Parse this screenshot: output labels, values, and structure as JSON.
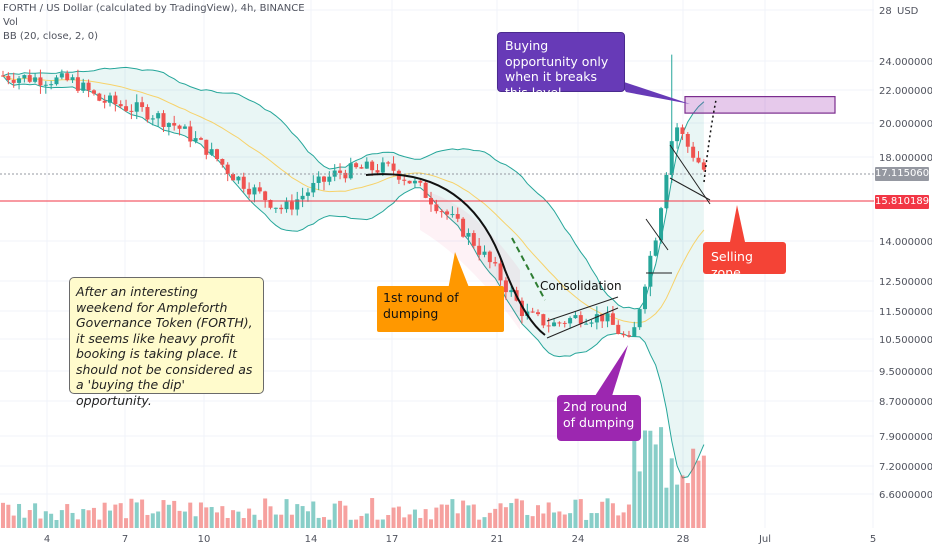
{
  "header": {
    "symbol_line": "FORTH / US Dollar (calculated by TradingView), 4h, BINANCE",
    "vol_label": "Vol",
    "bb_label": "BB (20, close, 2, 0)"
  },
  "annotations": {
    "info_note": "After an interesting weekend for Ampleforth Governance Token (FORTH), it seems like heavy profit booking is taking place. It should not be considered as a 'buying the dip' opportunity.",
    "first_dump": "1st round of dumping",
    "second_dump": "2nd round of dumping",
    "buy_opportunity": "Buying opportunity only when it breaks this level",
    "selling_zone": "Selling zone",
    "consolidation": "Consolidation"
  },
  "price_tags": [
    {
      "value": "17.1150600",
      "color": "#9598a1"
    },
    {
      "value": "15.8101898",
      "color": "#f23645"
    }
  ],
  "colors": {
    "up": "#26a69a",
    "down": "#ef5350",
    "bb_band": "#26a69a",
    "bb_basis": "#f7d26a",
    "buy_zone": "#7b2d8e",
    "sell_line": "#f23645"
  },
  "chart_data": {
    "type": "candlestick",
    "title": "FORTH / US Dollar (calculated by TradingView), 4h, BINANCE",
    "currency": "USD",
    "x_ticks": [
      "4",
      "7",
      "10",
      "14",
      "17",
      "21",
      "24",
      "28",
      "Jul",
      "5"
    ],
    "y_ticks": [
      28,
      24,
      22,
      20,
      18,
      17.11506,
      15.8101898,
      14,
      12.5,
      11.5,
      10.5,
      9.5,
      8.7,
      7.9,
      7.2,
      6.6
    ],
    "price_path": [
      [
        "4",
        23.0
      ],
      [
        "5",
        22.6
      ],
      [
        "6",
        21.4
      ],
      [
        "7",
        21.0
      ],
      [
        "8",
        20.6
      ],
      [
        "9",
        19.8
      ],
      [
        "10",
        18.6
      ],
      [
        "11",
        17.2
      ],
      [
        "12",
        16.2
      ],
      [
        "13",
        15.4
      ],
      [
        "14",
        16.4
      ],
      [
        "15",
        17.2
      ],
      [
        "16",
        17.4
      ],
      [
        "17",
        17.4
      ],
      [
        "18",
        16.5
      ],
      [
        "19",
        15.3
      ],
      [
        "20",
        14.1
      ],
      [
        "21",
        12.8
      ],
      [
        "22",
        11.4
      ],
      [
        "23",
        11.0
      ],
      [
        "24",
        11.3
      ],
      [
        "25",
        11.3
      ],
      [
        "26",
        10.3
      ],
      [
        "27",
        14.5
      ],
      [
        "28a",
        20.0
      ],
      [
        "28b",
        18.4
      ],
      [
        "28c",
        17.1
      ]
    ],
    "levels": {
      "current_price": 17.11506,
      "resistance_break": 15.8101898,
      "buy_zone_low": 20.6,
      "buy_zone_high": 21.6
    },
    "bollinger": "BB (20, close, 2, 0)",
    "volume_spike_at": "28"
  }
}
